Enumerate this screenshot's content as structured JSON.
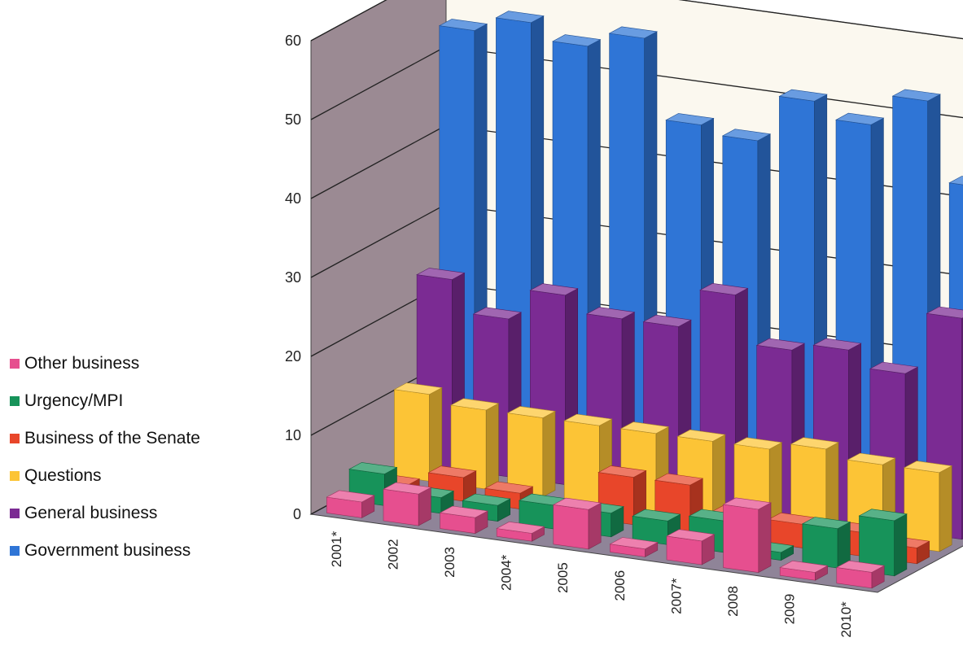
{
  "chart_data": {
    "type": "bar",
    "subtype": "3d-grouped-depth",
    "categories": [
      "2001*",
      "2002",
      "2003",
      "2004*",
      "2005",
      "2006",
      "2007*",
      "2008",
      "2009",
      "2010*"
    ],
    "series": [
      {
        "name": "Other business",
        "color": "#e64f8f",
        "values": [
          2,
          4,
          2,
          1,
          5,
          1,
          3,
          8,
          1,
          2
        ]
      },
      {
        "name": "Urgency/MPI",
        "color": "#17935a",
        "values": [
          4,
          2,
          2,
          3,
          3,
          3,
          4,
          1,
          5,
          7
        ]
      },
      {
        "name": "Business of the Senate",
        "color": "#e8462a",
        "values": [
          1,
          3,
          2,
          1,
          6,
          6,
          3,
          3,
          3,
          2
        ]
      },
      {
        "name": "Questions",
        "color": "#fcc436",
        "values": [
          11,
          10,
          10,
          10,
          10,
          10,
          10,
          11,
          10,
          10
        ]
      },
      {
        "name": "General business",
        "color": "#7b2b93",
        "values": [
          24,
          20,
          24,
          22,
          22,
          27,
          21,
          22,
          20,
          28
        ]
      },
      {
        "name": "Government business",
        "color": "#2f75d6",
        "values": [
          54,
          56,
          54,
          56,
          46,
          45,
          51,
          49,
          53,
          43
        ]
      }
    ],
    "yticks": [
      0,
      10,
      20,
      30,
      40,
      50,
      60
    ],
    "ylim": [
      0,
      60
    ],
    "grid": true,
    "legend_position": "left"
  }
}
